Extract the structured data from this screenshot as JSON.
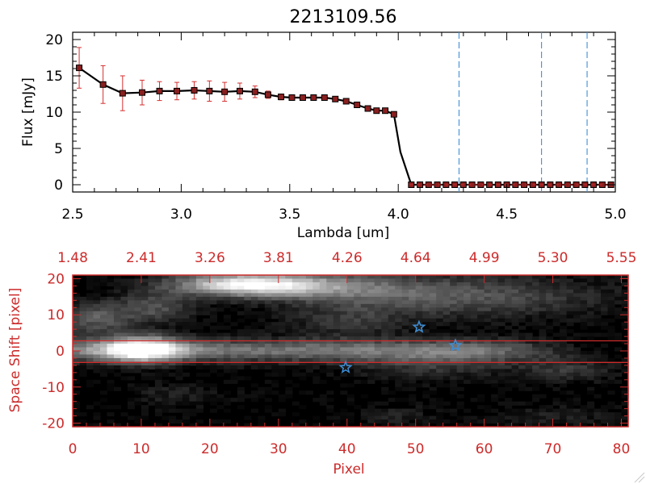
{
  "colors": {
    "background": "#ffffff",
    "axis_black": "#000000",
    "axis_red": "#cc2b2b",
    "error_bar": "#d62f2f",
    "marker_fill": "#8a1f1f",
    "marker_edge": "#000000",
    "line": "#000000",
    "dashed_line": "#3f8fd6",
    "star": "#3f8fd6",
    "band": "#cc2b2b"
  },
  "chart_data": [
    {
      "type": "line",
      "title": "2213109.56",
      "xlabel": "Lambda [um]",
      "ylabel": "Flux [mJy]",
      "xlim": [
        2.5,
        5.0
      ],
      "ylim": [
        -1,
        21
      ],
      "xticks": [
        "2.5",
        "3.0",
        "3.5",
        "4.0",
        "4.5",
        "5.0"
      ],
      "yticks": [
        "0",
        "5",
        "10",
        "15",
        "20"
      ],
      "series": [
        {
          "x": [
            2.53,
            2.64,
            2.73,
            2.82,
            2.9,
            2.98,
            3.06,
            3.13,
            3.2,
            3.27,
            3.34,
            3.4,
            3.46,
            3.51,
            3.56,
            3.61,
            3.66,
            3.71,
            3.76,
            3.81,
            3.86,
            3.9,
            3.94,
            3.98,
            4.01,
            4.06,
            4.1,
            4.14,
            4.18,
            4.22,
            4.26,
            4.3,
            4.34,
            4.38,
            4.42,
            4.46,
            4.5,
            4.54,
            4.58,
            4.62,
            4.66,
            4.7,
            4.74,
            4.78,
            4.82,
            4.86,
            4.9,
            4.94,
            4.98
          ],
          "y": [
            16.1,
            13.8,
            12.6,
            12.7,
            12.9,
            12.9,
            13.0,
            12.9,
            12.8,
            12.9,
            12.8,
            12.4,
            12.1,
            12.0,
            12.0,
            12.0,
            12.0,
            11.8,
            11.5,
            11.0,
            10.5,
            10.2,
            10.2,
            9.7,
            4.5,
            0.0,
            0.0,
            0.0,
            0.0,
            0.0,
            0.0,
            0.0,
            0.0,
            0.0,
            0.0,
            0.0,
            0.0,
            0.0,
            0.0,
            0.0,
            0.0,
            0.0,
            0.0,
            0.0,
            0.0,
            0.0,
            0.0,
            0.0,
            0.0
          ],
          "errors": [
            2.8,
            2.6,
            2.4,
            1.7,
            1.3,
            1.2,
            1.2,
            1.4,
            1.3,
            1.1,
            0.8,
            0.5,
            0.4,
            0.3,
            0.3,
            0.3,
            0.3,
            0.3,
            0.3,
            0.3,
            0.3,
            0.3,
            0.3,
            0.3,
            0.0,
            0.0,
            0.0,
            0.0,
            0.0,
            0.0,
            0.0,
            0.0,
            0.0,
            0.0,
            0.0,
            0.0,
            0.0,
            0.0,
            0.0,
            0.0,
            0.0,
            0.0,
            0.0,
            0.0,
            0.0,
            0.0,
            0.0,
            0.0,
            0.0
          ],
          "marker_skip": [
            24
          ]
        }
      ],
      "vlines": [
        4.28,
        4.66,
        4.87
      ],
      "grid": false
    },
    {
      "type": "heatmap",
      "xlabel": "Pixel",
      "ylabel": "Space Shift [pixel]",
      "xlim": [
        0,
        81
      ],
      "ylim": [
        -21,
        21
      ],
      "xticks": [
        "0",
        "10",
        "20",
        "30",
        "40",
        "50",
        "60",
        "70",
        "80"
      ],
      "yticks": [
        "-20",
        "-10",
        "0",
        "10",
        "20"
      ],
      "top_axis_ticks": [
        "1.48",
        "2.41",
        "3.26",
        "3.81",
        "4.26",
        "4.64",
        "4.99",
        "5.30",
        "5.55"
      ],
      "band_lines": [
        2.8,
        -3.2
      ],
      "stars": [
        {
          "x": 50.5,
          "y": 6.6
        },
        {
          "x": 55.8,
          "y": 1.5
        },
        {
          "x": 39.8,
          "y": -4.6
        }
      ],
      "grid": false
    }
  ]
}
